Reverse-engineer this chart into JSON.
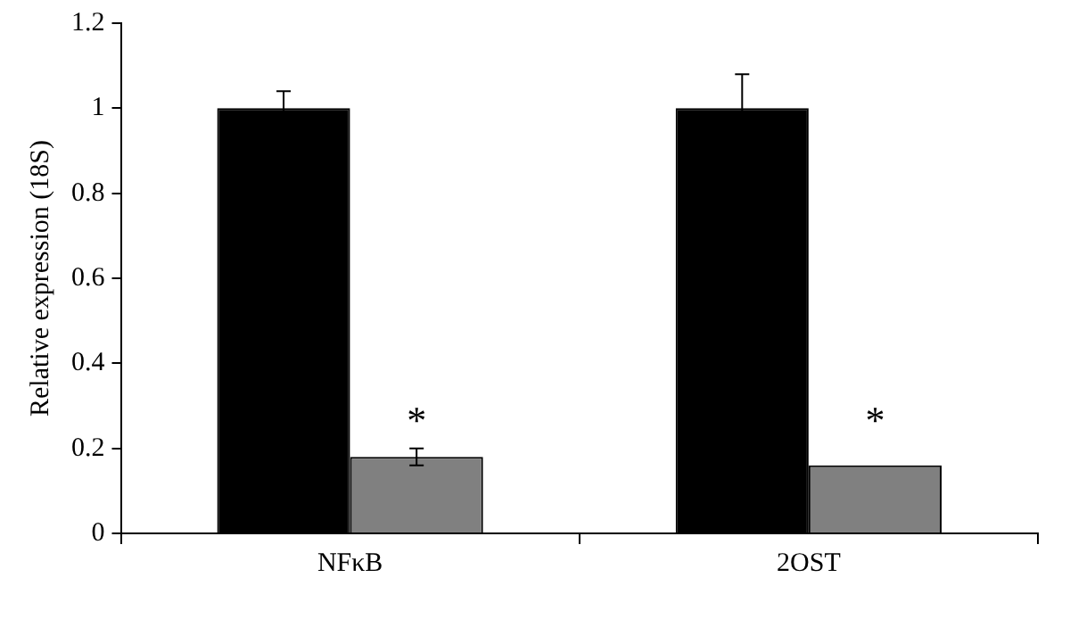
{
  "chart_data": {
    "type": "bar",
    "ylabel": "Relative expression (18S)",
    "categories": [
      "NFκB",
      "2OST"
    ],
    "series": [
      {
        "color": "#000000",
        "values": [
          1,
          1
        ],
        "errors": [
          0.04,
          0.08
        ]
      },
      {
        "color": "#808080",
        "values": [
          0.18,
          0.16
        ],
        "errors": [
          0.02,
          null
        ]
      }
    ],
    "ylim": [
      0,
      1.2
    ],
    "yticks": [
      0,
      0.2,
      0.4,
      0.6,
      0.8,
      1,
      1.2
    ],
    "grid": false,
    "legend": false,
    "annotations": [
      {
        "text": "*",
        "x": "NFκB",
        "y": 0.28
      },
      {
        "text": "*",
        "x": "2OST",
        "y": 0.28
      }
    ]
  }
}
